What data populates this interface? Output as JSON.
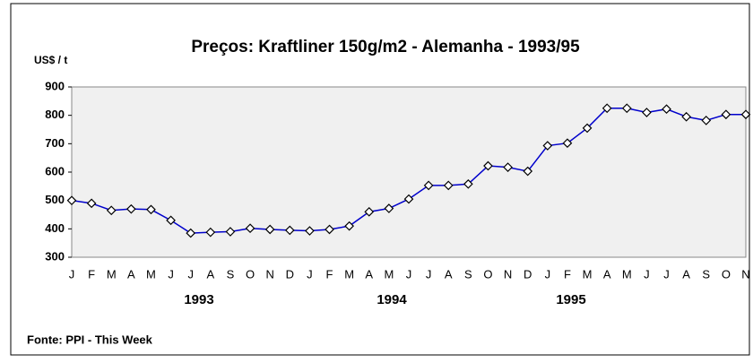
{
  "chart_data": {
    "type": "line",
    "title": "Preços: Kraftliner 150g/m2 - Alemanha - 1993/95",
    "y_label": "US$ / t",
    "source": "Fonte: PPI - This Week",
    "categories": [
      "J",
      "F",
      "M",
      "A",
      "M",
      "J",
      "J",
      "A",
      "S",
      "O",
      "N",
      "D",
      "J",
      "F",
      "M",
      "A",
      "M",
      "J",
      "J",
      "A",
      "S",
      "O",
      "N",
      "D",
      "J",
      "F",
      "M",
      "A",
      "M",
      "J",
      "J",
      "A",
      "S",
      "O",
      "N"
    ],
    "years": [
      "1993",
      "1994",
      "1995"
    ],
    "series": [
      {
        "name": "Kraftliner 150g/m2",
        "color": "#0000cc",
        "values": [
          500,
          490,
          465,
          470,
          468,
          430,
          385,
          388,
          390,
          402,
          398,
          395,
          393,
          398,
          410,
          460,
          472,
          505,
          553,
          553,
          558,
          622,
          617,
          603,
          693,
          702,
          755,
          825,
          825,
          810,
          822,
          795,
          782,
          803,
          803
        ]
      }
    ],
    "ylim": [
      300,
      900
    ],
    "yticks": [
      300,
      400,
      500,
      600,
      700,
      800,
      900
    ],
    "grid": false
  }
}
